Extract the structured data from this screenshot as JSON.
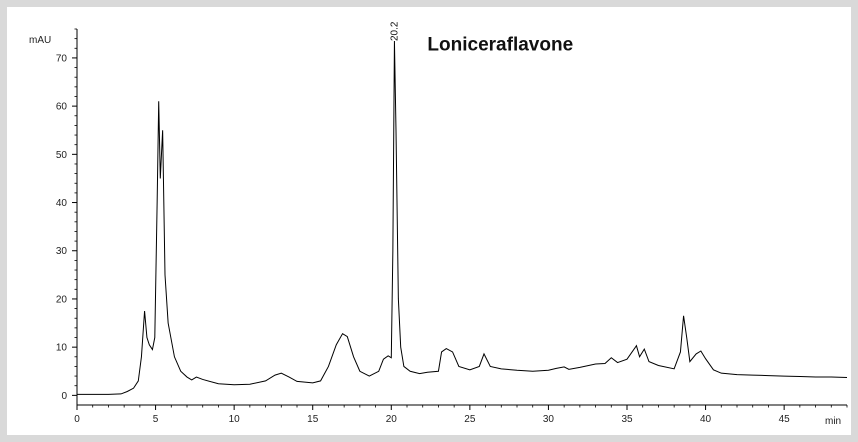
{
  "chart_data": {
    "type": "line",
    "title": "",
    "xlabel": "min",
    "ylabel": "mAU",
    "xlim": [
      0,
      49
    ],
    "ylim": [
      -2,
      76
    ],
    "x_ticks": [
      0,
      5,
      10,
      15,
      20,
      25,
      30,
      35,
      40,
      45
    ],
    "y_ticks": [
      0,
      10,
      20,
      30,
      40,
      50,
      60,
      70
    ],
    "grid": false,
    "annotations": [
      {
        "text": "Loniceraflavone",
        "x": 22.3,
        "y": 71.5
      }
    ],
    "peak_labels": [
      {
        "text": "20.2",
        "x": 20.2,
        "y": 73.5
      }
    ],
    "series": [
      {
        "points": [
          [
            0,
            0.2
          ],
          [
            1,
            0.2
          ],
          [
            2,
            0.2
          ],
          [
            2.8,
            0.3
          ],
          [
            3.2,
            0.8
          ],
          [
            3.6,
            1.5
          ],
          [
            3.9,
            3
          ],
          [
            4.1,
            8
          ],
          [
            4.3,
            17.5
          ],
          [
            4.45,
            12
          ],
          [
            4.6,
            10.5
          ],
          [
            4.8,
            9.5
          ],
          [
            4.95,
            12
          ],
          [
            5.1,
            40
          ],
          [
            5.2,
            61
          ],
          [
            5.3,
            45
          ],
          [
            5.45,
            55
          ],
          [
            5.6,
            25
          ],
          [
            5.8,
            15
          ],
          [
            6.2,
            8
          ],
          [
            6.6,
            5
          ],
          [
            7,
            3.8
          ],
          [
            7.3,
            3.2
          ],
          [
            7.6,
            3.8
          ],
          [
            8,
            3.3
          ],
          [
            9,
            2.4
          ],
          [
            10,
            2.2
          ],
          [
            11,
            2.3
          ],
          [
            12,
            3
          ],
          [
            12.6,
            4.2
          ],
          [
            13,
            4.6
          ],
          [
            13.5,
            3.8
          ],
          [
            14,
            2.9
          ],
          [
            15,
            2.6
          ],
          [
            15.5,
            3
          ],
          [
            16,
            6
          ],
          [
            16.5,
            10.5
          ],
          [
            16.9,
            12.8
          ],
          [
            17.2,
            12.2
          ],
          [
            17.6,
            8
          ],
          [
            18,
            5
          ],
          [
            18.6,
            4
          ],
          [
            19.2,
            5
          ],
          [
            19.5,
            7.5
          ],
          [
            19.8,
            8.2
          ],
          [
            20,
            7.8
          ],
          [
            20.1,
            30
          ],
          [
            20.2,
            73.5
          ],
          [
            20.3,
            55
          ],
          [
            20.45,
            20
          ],
          [
            20.6,
            10
          ],
          [
            20.8,
            6
          ],
          [
            21.2,
            5
          ],
          [
            21.8,
            4.5
          ],
          [
            22.3,
            4.8
          ],
          [
            23,
            5
          ],
          [
            23.2,
            9
          ],
          [
            23.5,
            9.7
          ],
          [
            23.9,
            9
          ],
          [
            24.3,
            6
          ],
          [
            25,
            5.3
          ],
          [
            25.6,
            6
          ],
          [
            25.9,
            8.6
          ],
          [
            26.3,
            6
          ],
          [
            27,
            5.5
          ],
          [
            28,
            5.2
          ],
          [
            29,
            5
          ],
          [
            30,
            5.2
          ],
          [
            30.5,
            5.6
          ],
          [
            31,
            5.9
          ],
          [
            31.3,
            5.4
          ],
          [
            32,
            5.8
          ],
          [
            33,
            6.5
          ],
          [
            33.6,
            6.6
          ],
          [
            34,
            7.8
          ],
          [
            34.4,
            6.8
          ],
          [
            35,
            7.5
          ],
          [
            35.6,
            10.3
          ],
          [
            35.8,
            8
          ],
          [
            36.1,
            9.6
          ],
          [
            36.4,
            7
          ],
          [
            37,
            6.2
          ],
          [
            38,
            5.5
          ],
          [
            38.4,
            9
          ],
          [
            38.6,
            16.5
          ],
          [
            38.8,
            12
          ],
          [
            39,
            7
          ],
          [
            39.4,
            8.6
          ],
          [
            39.7,
            9.2
          ],
          [
            40,
            7.6
          ],
          [
            40.5,
            5.3
          ],
          [
            41,
            4.6
          ],
          [
            42,
            4.3
          ],
          [
            43,
            4.2
          ],
          [
            44,
            4.1
          ],
          [
            45,
            4
          ],
          [
            46,
            3.9
          ],
          [
            47,
            3.8
          ],
          [
            48,
            3.8
          ],
          [
            49,
            3.7
          ]
        ]
      }
    ]
  }
}
